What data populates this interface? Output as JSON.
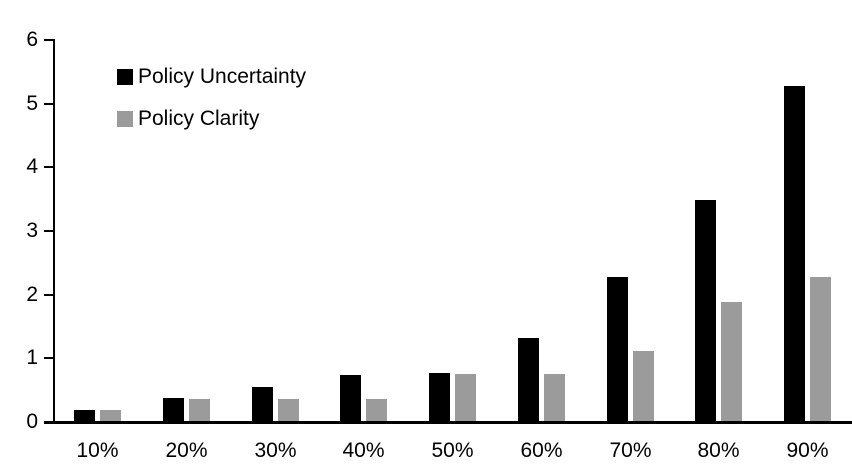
{
  "chart_data": {
    "type": "bar",
    "title": "",
    "xlabel": "",
    "ylabel": "",
    "categories": [
      "10%",
      "20%",
      "30%",
      "40%",
      "50%",
      "60%",
      "70%",
      "80%",
      "90%"
    ],
    "series": [
      {
        "name": "Policy Uncertainty",
        "color": "#000000",
        "values": [
          0.2,
          0.4,
          0.57,
          0.76,
          0.78,
          1.33,
          2.3,
          3.5,
          5.3
        ]
      },
      {
        "name": "Policy Clarity",
        "color": "#9b9b9b",
        "values": [
          0.2,
          0.38,
          0.38,
          0.38,
          0.77,
          0.77,
          1.13,
          1.9,
          2.3
        ]
      }
    ],
    "ylim": [
      0,
      6
    ],
    "ytick_labels": [
      "0",
      "1",
      "2",
      "3",
      "4",
      "5",
      "6"
    ],
    "grid": false,
    "legend_position": "top-left",
    "axis_color": "#000000",
    "background": "#ffffff"
  }
}
